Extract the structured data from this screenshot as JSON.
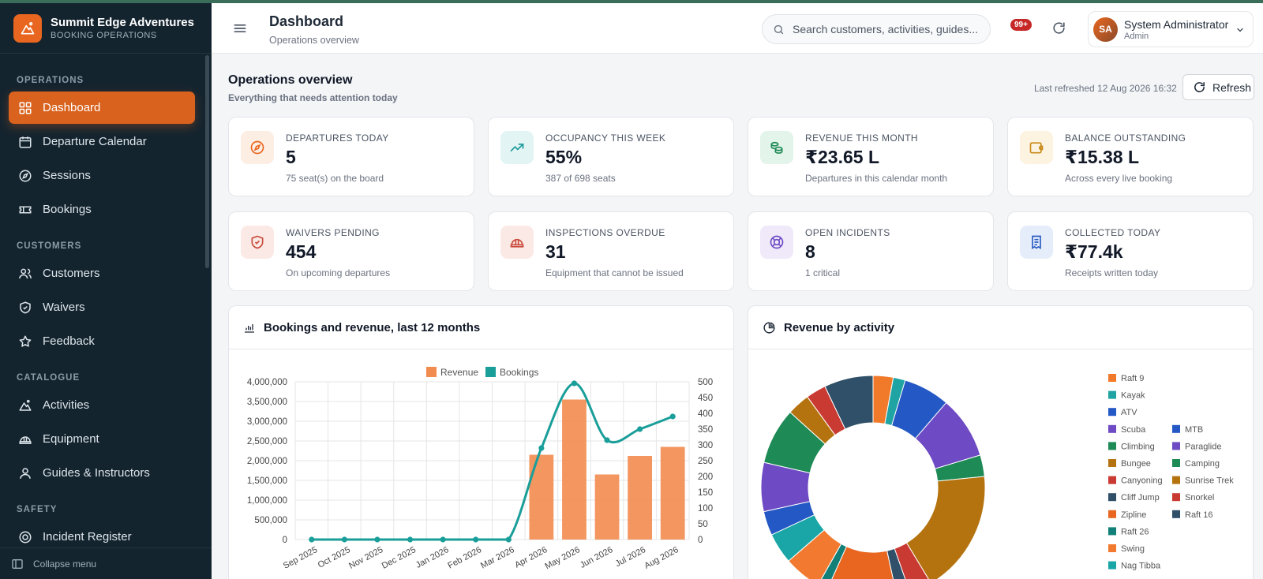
{
  "brand": {
    "name": "Summit Edge Adventures",
    "subtitle": "BOOKING OPERATIONS"
  },
  "sidebar": {
    "sections": [
      {
        "title": "OPERATIONS",
        "items": [
          {
            "label": "Dashboard",
            "icon": "grid-icon",
            "active": true
          },
          {
            "label": "Departure Calendar",
            "icon": "calendar-icon"
          },
          {
            "label": "Sessions",
            "icon": "compass-icon"
          },
          {
            "label": "Bookings",
            "icon": "ticket-icon"
          }
        ]
      },
      {
        "title": "CUSTOMERS",
        "items": [
          {
            "label": "Customers",
            "icon": "users-icon"
          },
          {
            "label": "Waivers",
            "icon": "shield-icon"
          },
          {
            "label": "Feedback",
            "icon": "star-icon"
          }
        ]
      },
      {
        "title": "CATALOGUE",
        "items": [
          {
            "label": "Activities",
            "icon": "mountain-icon"
          },
          {
            "label": "Equipment",
            "icon": "helmet-icon"
          },
          {
            "label": "Guides & Instructors",
            "icon": "user-icon"
          }
        ]
      },
      {
        "title": "SAFETY",
        "items": [
          {
            "label": "Incident Register",
            "icon": "lifebuoy-icon"
          }
        ]
      }
    ],
    "collapse_label": "Collapse menu"
  },
  "header": {
    "title": "Dashboard",
    "subtitle": "Operations overview",
    "search_placeholder": "Search customers, activities, guides...",
    "notification_badge": "99+",
    "user": {
      "initials": "SA",
      "name": "System Administrator",
      "role": "Admin"
    }
  },
  "overview": {
    "title": "Operations overview",
    "subtitle": "Everything that needs attention today",
    "last_refreshed": "Last refreshed 12 Aug 2026 16:32",
    "refresh_label": "Refresh"
  },
  "cards": [
    {
      "label": "DEPARTURES TODAY",
      "value": "5",
      "note": "75 seat(s) on the board",
      "icon": "compass-icon",
      "color": "#e8661f",
      "bg": "#fdeee4"
    },
    {
      "label": "OCCUPANCY THIS WEEK",
      "value": "55%",
      "note": "387 of 698 seats",
      "icon": "trending-up-icon",
      "color": "#1a9a9a",
      "bg": "#e2f4f3"
    },
    {
      "label": "REVENUE THIS MONTH",
      "value": "₹23.65 L",
      "note": "Departures in this calendar month",
      "icon": "coins-icon",
      "color": "#1e8a55",
      "bg": "#e3f4ea"
    },
    {
      "label": "BALANCE OUTSTANDING",
      "value": "₹15.38 L",
      "note": "Across every live booking",
      "icon": "wallet-icon",
      "color": "#c98a1a",
      "bg": "#fcf3e1"
    },
    {
      "label": "WAIVERS PENDING",
      "value": "454",
      "note": "On upcoming departures",
      "icon": "shield-check-icon",
      "color": "#c94a3a",
      "bg": "#fbe9e6"
    },
    {
      "label": "INSPECTIONS OVERDUE",
      "value": "31",
      "note": "Equipment that cannot be issued",
      "icon": "helmet-icon",
      "color": "#c94a3a",
      "bg": "#fbe9e6"
    },
    {
      "label": "OPEN INCIDENTS",
      "value": "8",
      "note": "1 critical",
      "icon": "lifebuoy-icon",
      "color": "#6e4bc4",
      "bg": "#efe9fa"
    },
    {
      "label": "COLLECTED TODAY",
      "value": "₹77.4k",
      "note": "Receipts written today",
      "icon": "receipt-icon",
      "color": "#2a5cc4",
      "bg": "#e6edfa"
    }
  ],
  "panels": {
    "bookings_title": "Bookings and revenue, last 12 months",
    "activity_title": "Revenue by activity"
  },
  "chart_data": [
    {
      "type": "bar",
      "title": "Bookings and revenue, last 12 months",
      "categories": [
        "Sep 2025",
        "Oct 2025",
        "Nov 2025",
        "Dec 2025",
        "Jan 2026",
        "Feb 2026",
        "Mar 2026",
        "Apr 2026",
        "May 2026",
        "Jun 2026",
        "Jul 2026",
        "Aug 2026"
      ],
      "series": [
        {
          "name": "Revenue",
          "type": "bar",
          "axis": "left",
          "color": "#f28b4f",
          "values": [
            0,
            0,
            0,
            0,
            0,
            0,
            0,
            2150000,
            3550000,
            1650000,
            2120000,
            2350000
          ]
        },
        {
          "name": "Bookings",
          "type": "line",
          "axis": "right",
          "color": "#1a9e9a",
          "values": [
            0,
            0,
            0,
            0,
            0,
            0,
            0,
            290,
            495,
            315,
            350,
            390
          ]
        }
      ],
      "y_left": {
        "ylim": [
          0,
          4000000
        ],
        "ticks": [
          "4,000,000",
          "3,500,000",
          "3,000,000",
          "2,500,000",
          "2,000,000",
          "1,500,000",
          "1,000,000",
          "500,000",
          "0"
        ]
      },
      "y_right": {
        "ylim": [
          0,
          500
        ],
        "ticks": [
          "500",
          "450",
          "400",
          "350",
          "300",
          "250",
          "200",
          "150",
          "100",
          "50",
          "0"
        ]
      },
      "grid": true,
      "legend": "top"
    },
    {
      "type": "pie",
      "title": "Revenue by activity",
      "donut": true,
      "slices": [
        {
          "label": "Raft 9",
          "value": 3.0,
          "color": "#f07a2a"
        },
        {
          "label": "Kayak",
          "value": 1.8,
          "color": "#1fa3a3"
        },
        {
          "label": "ATV",
          "value": 6.9,
          "color": "#2458c4"
        },
        {
          "label": "Scuba",
          "value": 9.3,
          "color": "#6e4bc4"
        },
        {
          "label": "Climbing",
          "value": 3.2,
          "color": "#1e8a55"
        },
        {
          "label": "Bungee",
          "value": 18.5,
          "color": "#b5730f"
        },
        {
          "label": "Canyoning",
          "value": 3.4,
          "color": "#c93a33"
        },
        {
          "label": "Cliff Jump",
          "value": 2.0,
          "color": "#2f5068"
        },
        {
          "label": "Zipline",
          "value": 10.5,
          "color": "#e8661f"
        },
        {
          "label": "Raft 26",
          "value": 1.5,
          "color": "#128078"
        },
        {
          "label": "Swing",
          "value": 5.6,
          "color": "#f27a30"
        },
        {
          "label": "Nag Tibba",
          "value": 4.6,
          "color": "#1aa6a6"
        },
        {
          "label": "MTB",
          "value": 3.6,
          "color": "#2458c4"
        },
        {
          "label": "Paraglide",
          "value": 7.3,
          "color": "#6e4bc4"
        },
        {
          "label": "Camping",
          "value": 8.4,
          "color": "#1e8a55"
        },
        {
          "label": "Sunrise Trek",
          "value": 3.4,
          "color": "#b5730f"
        },
        {
          "label": "Snorkel",
          "value": 3.0,
          "color": "#c93a33"
        },
        {
          "label": "Raft 16",
          "value": 7.3,
          "color": "#2f5068"
        }
      ],
      "legend_columns": [
        [
          "Raft 9",
          "Kayak",
          "ATV",
          "Scuba",
          "Climbing",
          "Bungee",
          "Canyoning",
          "Cliff Jump",
          "Zipline",
          "Raft 26",
          "Swing",
          "Nag Tibba"
        ],
        [
          "MTB",
          "Paraglide",
          "Camping",
          "Sunrise Trek",
          "Snorkel",
          "Raft 16"
        ]
      ],
      "legend": "right"
    }
  ]
}
